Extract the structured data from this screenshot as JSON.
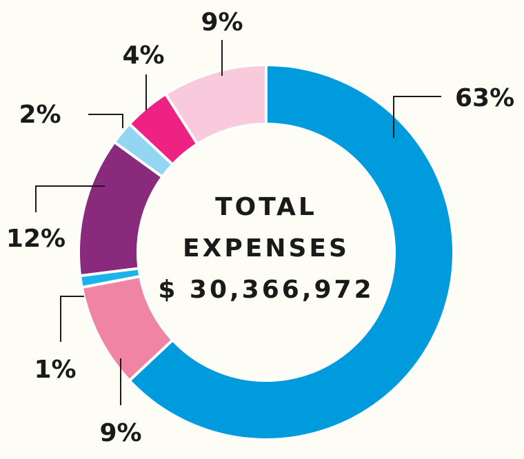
{
  "center": {
    "line1": "TOTAL",
    "line2": "EXPENSES",
    "line3": "$ 30,366,972"
  },
  "chart_data": {
    "type": "pie",
    "variant": "donut",
    "title": "",
    "legend": "none",
    "slices": [
      {
        "label": "63%",
        "value": 63,
        "color": "#009bdc"
      },
      {
        "label": "9%",
        "value": 9,
        "color": "#ef84a4"
      },
      {
        "label": "1%",
        "value": 1,
        "color": "#1bb3ec"
      },
      {
        "label": "12%",
        "value": 12,
        "color": "#8a2a7d"
      },
      {
        "label": "2%",
        "value": 2,
        "color": "#92d6f4"
      },
      {
        "label": "4%",
        "value": 4,
        "color": "#ee2282"
      },
      {
        "label": "9%",
        "value": 9,
        "color": "#f9cadb"
      }
    ]
  }
}
